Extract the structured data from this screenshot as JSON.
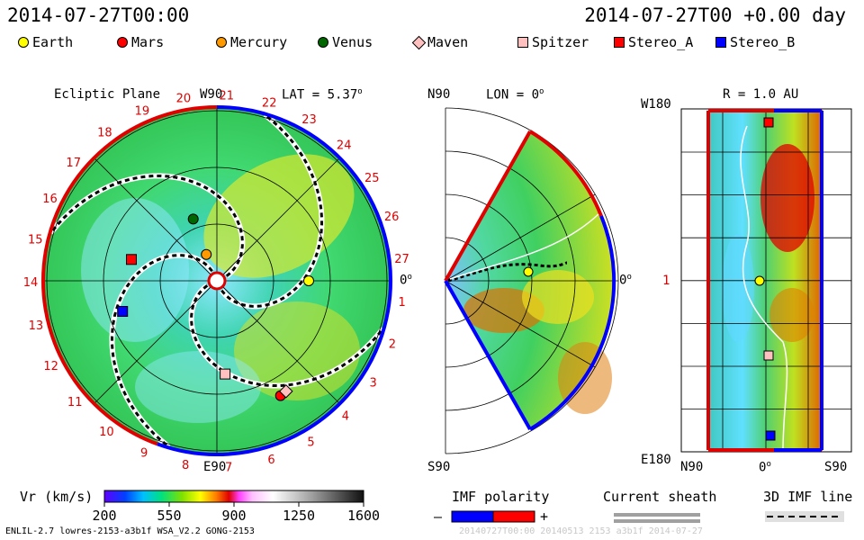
{
  "header": {
    "date_left": "2014-07-27T00:00",
    "date_right": "2014-07-27T00 +0.00 day"
  },
  "legend": [
    {
      "name": "Earth",
      "shape": "circle",
      "color": "#ffff00"
    },
    {
      "name": "Mars",
      "shape": "circle",
      "color": "#ff0000"
    },
    {
      "name": "Mercury",
      "shape": "circle",
      "color": "#ff9900"
    },
    {
      "name": "Venus",
      "shape": "circle",
      "color": "#006600"
    },
    {
      "name": "Maven",
      "shape": "diamond",
      "color": "#ffc0c0"
    },
    {
      "name": "Spitzer",
      "shape": "square",
      "color": "#ffc0c0"
    },
    {
      "name": "Stereo_A",
      "shape": "square",
      "color": "#ff0000"
    },
    {
      "name": "Stereo_B",
      "shape": "square",
      "color": "#0000ff"
    }
  ],
  "panels": {
    "ecliptic": {
      "title": "Ecliptic Plane",
      "top": "W90",
      "bottom": "E90",
      "right": "0",
      "lat": "LAT = 5.37",
      "superscript": "o"
    },
    "meridional": {
      "top": "N90",
      "bottom": "S90",
      "lon": "LON = 0",
      "right": "0",
      "superscript": "o"
    },
    "radius": {
      "title": "R = 1.0 AU",
      "top": "W180",
      "middle": "1",
      "bottom": "E180",
      "x_left": "N90",
      "x_mid": "0",
      "x_right": "S90",
      "superscript": "o"
    }
  },
  "chart_data": {
    "type": "heatmap",
    "quantity": "Vr (km/s)",
    "colorbar": {
      "min": 200,
      "max": 1600,
      "ticks": [
        200,
        550,
        900,
        1250,
        1600
      ]
    },
    "carrington_labels": [
      "27",
      "1",
      "2",
      "3",
      "4",
      "5",
      "6",
      "7",
      "8",
      "9",
      "10",
      "11",
      "12",
      "13",
      "14",
      "15",
      "16",
      "17",
      "18",
      "19",
      "20",
      "21",
      "22",
      "23",
      "24",
      "25",
      "26"
    ],
    "bodies_ecliptic": [
      {
        "name": "Earth",
        "r_au": 1.0,
        "lon_deg": 0
      },
      {
        "name": "Venus",
        "r_au": 0.72,
        "lon_deg": 111
      },
      {
        "name": "Mercury",
        "r_au": 0.31,
        "lon_deg": 112
      },
      {
        "name": "Mars",
        "r_au": 1.43,
        "lon_deg": -61
      },
      {
        "name": "Maven",
        "r_au": 1.42,
        "lon_deg": -58
      },
      {
        "name": "Spitzer",
        "r_au": 1.02,
        "lon_deg": -85
      },
      {
        "name": "Stereo_A",
        "r_au": 0.96,
        "lon_deg": 166
      },
      {
        "name": "Stereo_B",
        "r_au": 1.08,
        "lon_deg": -162
      }
    ]
  },
  "bottom_legend": {
    "vr_label": "Vr (km/s)",
    "imf_title": "IMF polarity",
    "imf_minus": "–",
    "imf_plus": "+",
    "sheath_title": "Current sheath",
    "imf3d_title": "3D IMF line"
  },
  "footer": {
    "left": "ENLIL-2.7 lowres-2153-a3b1f WSA_V2.2 GONG-2153",
    "right": "20140727T00:00 20140513 2153 a3b1f 2014-07-27"
  }
}
